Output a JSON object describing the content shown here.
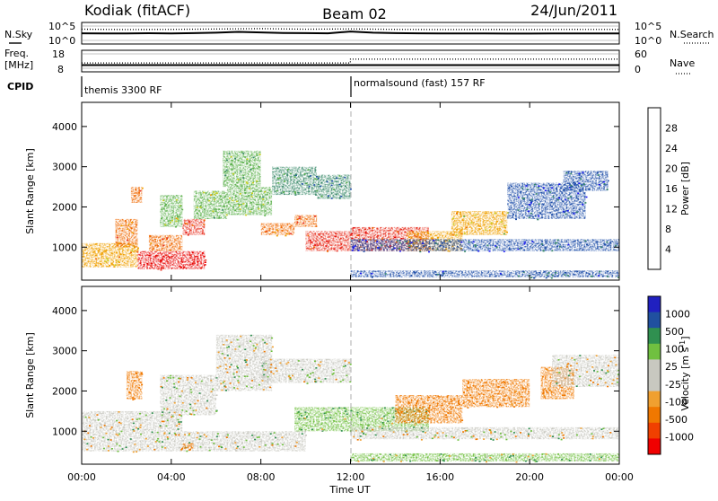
{
  "header": {
    "station": "Kodiak (fitACF)",
    "beam": "Beam 02",
    "date": "24/Jun/2011"
  },
  "noise_panel": {
    "left_label": "N.Sky",
    "left_ticks": [
      "10^5",
      "10^0"
    ],
    "right_label": "N.Search",
    "right_ticks": [
      "10^5",
      "10^0"
    ]
  },
  "freq_panel": {
    "left_label_line1": "Freq.",
    "left_label_line2": "[MHz]",
    "left_ticks": [
      "18",
      "8"
    ],
    "right_label": "Nave",
    "right_ticks": [
      "60",
      "0"
    ]
  },
  "cpid_panel": {
    "label": "CPID",
    "segments": [
      {
        "start_hour": 0,
        "text": "themis 3300 RF"
      },
      {
        "start_hour": 12,
        "text": "normalsound (fast) 157 RF"
      }
    ]
  },
  "colors": {
    "power_scale": [
      "#1818f0",
      "#1e4ea8",
      "#3a8a6a",
      "#5ab04a",
      "#c8d020",
      "#f0a000",
      "#f06800",
      "#e83020",
      "#e80000"
    ],
    "velocity_scale": [
      "#f00000",
      "#f04000",
      "#f07800",
      "#f0a030",
      "#c8c8c0",
      "#c8c8c0",
      "#70c040",
      "#309050",
      "#2050a0",
      "#2020c0"
    ],
    "ground_scatter": "#c8c8c0"
  },
  "chart_data": [
    {
      "type": "line",
      "title": "N.Sky / N.Search",
      "x_unit": "hours UT",
      "y_scale": "log",
      "ylim": [
        1,
        100000
      ],
      "series": [
        {
          "name": "N.Sky",
          "style": "solid",
          "x": [
            0,
            1,
            2,
            3,
            4,
            5,
            6,
            7,
            8,
            9,
            10,
            11,
            12,
            13,
            14,
            15,
            16,
            17,
            18,
            19,
            20,
            21,
            22,
            23,
            24
          ],
          "y": [
            300,
            250,
            280,
            320,
            260,
            350,
            500,
            900,
            600,
            400,
            350,
            300,
            1200,
            500,
            350,
            300,
            280,
            260,
            250,
            240,
            240,
            250,
            260,
            270,
            260
          ]
        },
        {
          "name": "N.Search",
          "style": "dotted",
          "x": [
            0,
            2,
            4,
            6,
            8,
            10,
            12,
            14,
            16,
            18,
            20,
            22,
            24
          ],
          "y": [
            8000,
            6000,
            7000,
            9000,
            12000,
            8000,
            10000,
            7000,
            6000,
            6500,
            6000,
            7000,
            6500
          ]
        }
      ]
    },
    {
      "type": "line",
      "title": "Freq. / Nave",
      "x_unit": "hours UT",
      "series": [
        {
          "name": "Freq. [MHz]",
          "style": "solid",
          "ylim": [
            8,
            18
          ],
          "x": [
            0,
            11.99,
            12,
            24
          ],
          "y": [
            10.2,
            10.2,
            10.2,
            10.2
          ]
        },
        {
          "name": "Nave",
          "style": "dotted",
          "ylim": [
            0,
            60
          ],
          "x": [
            0,
            11.99,
            12,
            24
          ],
          "y": [
            22,
            22,
            38,
            38
          ]
        }
      ]
    },
    {
      "type": "heatmap",
      "title": "Power",
      "xlabel": "Time UT",
      "ylabel": "Slant Range [km]",
      "colorbar_label": "Power [dB]",
      "colorbar_ticks": [
        4,
        8,
        12,
        16,
        20,
        24,
        28
      ],
      "colorbar_range": [
        0,
        32
      ],
      "xlim": [
        0,
        24
      ],
      "ylim": [
        180,
        4600
      ],
      "yticks": [
        1000,
        2000,
        3000,
        4000
      ],
      "regions": [
        {
          "t0": 0.0,
          "t1": 2.5,
          "r0": 500,
          "r1": 1100,
          "value": 20
        },
        {
          "t0": 1.5,
          "t1": 2.5,
          "r0": 1000,
          "r1": 1700,
          "value": 22
        },
        {
          "t0": 2.5,
          "t1": 5.5,
          "r0": 450,
          "r1": 900,
          "value": 30
        },
        {
          "t0": 3.0,
          "t1": 4.5,
          "r0": 900,
          "r1": 1300,
          "value": 24
        },
        {
          "t0": 2.2,
          "t1": 2.7,
          "r0": 2100,
          "r1": 2500,
          "value": 22
        },
        {
          "t0": 3.5,
          "t1": 4.5,
          "r0": 1500,
          "r1": 2300,
          "value": 14
        },
        {
          "t0": 4.5,
          "t1": 5.5,
          "r0": 1300,
          "r1": 1700,
          "value": 26
        },
        {
          "t0": 5.0,
          "t1": 6.5,
          "r0": 1700,
          "r1": 2400,
          "value": 14
        },
        {
          "t0": 6.3,
          "t1": 8.0,
          "r0": 2500,
          "r1": 3400,
          "value": 12
        },
        {
          "t0": 6.5,
          "t1": 8.5,
          "r0": 1800,
          "r1": 2500,
          "value": 14
        },
        {
          "t0": 8.0,
          "t1": 9.5,
          "r0": 1300,
          "r1": 1600,
          "value": 22
        },
        {
          "t0": 8.5,
          "t1": 10.5,
          "r0": 2300,
          "r1": 3000,
          "value": 10
        },
        {
          "t0": 9.5,
          "t1": 10.5,
          "r0": 1500,
          "r1": 1800,
          "value": 24
        },
        {
          "t0": 10.0,
          "t1": 12.0,
          "r0": 900,
          "r1": 1400,
          "value": 26
        },
        {
          "t0": 10.5,
          "t1": 12.0,
          "r0": 2200,
          "r1": 2800,
          "value": 8
        },
        {
          "t0": 12.0,
          "t1": 15.5,
          "r0": 900,
          "r1": 1500,
          "value": 26
        },
        {
          "t0": 14.5,
          "t1": 17.0,
          "r0": 900,
          "r1": 1400,
          "value": 20
        },
        {
          "t0": 16.5,
          "t1": 19.0,
          "r0": 1300,
          "r1": 1900,
          "value": 18
        },
        {
          "t0": 12.0,
          "t1": 24.0,
          "r0": 900,
          "r1": 1200,
          "value": 6
        },
        {
          "t0": 12.0,
          "t1": 24.0,
          "r0": 250,
          "r1": 420,
          "value": 6
        },
        {
          "t0": 19.0,
          "t1": 22.5,
          "r0": 1700,
          "r1": 2600,
          "value": 6
        },
        {
          "t0": 21.5,
          "t1": 23.5,
          "r0": 2400,
          "r1": 2900,
          "value": 6
        }
      ]
    },
    {
      "type": "heatmap",
      "title": "Velocity",
      "xlabel": "Time UT",
      "ylabel": "Slant Range [km]",
      "colorbar_label": "Velocity [m s^-1]",
      "colorbar_ticks": [
        1000,
        500,
        100,
        25,
        -25,
        -100,
        -500,
        -1000
      ],
      "colorbar_range": [
        -1000,
        1000
      ],
      "xlim": [
        0,
        24
      ],
      "ylim": [
        180,
        4600
      ],
      "yticks": [
        1000,
        2000,
        3000,
        4000
      ],
      "xticks": [
        "00:00",
        "04:00",
        "08:00",
        "12:00",
        "16:00",
        "20:00",
        "00:00"
      ],
      "regions": [
        {
          "t0": 0.0,
          "t1": 10.0,
          "r0": 500,
          "r1": 1000,
          "value": 0
        },
        {
          "t0": 0.0,
          "t1": 4.5,
          "r0": 1000,
          "r1": 1500,
          "value": 0
        },
        {
          "t0": 2.0,
          "t1": 2.7,
          "r0": 1800,
          "r1": 2500,
          "value": -300
        },
        {
          "t0": 3.5,
          "t1": 6.0,
          "r0": 1400,
          "r1": 2400,
          "value": 0
        },
        {
          "t0": 6.0,
          "t1": 8.5,
          "r0": 2000,
          "r1": 3400,
          "value": 0
        },
        {
          "t0": 8.0,
          "t1": 12.0,
          "r0": 2200,
          "r1": 2800,
          "value": 0
        },
        {
          "t0": 9.5,
          "t1": 15.5,
          "r0": 1000,
          "r1": 1600,
          "value": 100
        },
        {
          "t0": 14.0,
          "t1": 17.0,
          "r0": 1200,
          "r1": 1900,
          "value": -250
        },
        {
          "t0": 17.0,
          "t1": 20.0,
          "r0": 1600,
          "r1": 2300,
          "value": -200
        },
        {
          "t0": 20.5,
          "t1": 22.0,
          "r0": 1800,
          "r1": 2600,
          "value": -200
        },
        {
          "t0": 21.0,
          "t1": 24.0,
          "r0": 2100,
          "r1": 2900,
          "value": 0
        },
        {
          "t0": 12.0,
          "t1": 24.0,
          "r0": 800,
          "r1": 1100,
          "value": 0
        },
        {
          "t0": 12.0,
          "t1": 24.0,
          "r0": 250,
          "r1": 450,
          "value": 60
        },
        {
          "t0": 4.5,
          "t1": 5.0,
          "r0": 550,
          "r1": 700,
          "value": -200
        }
      ]
    }
  ],
  "axes": {
    "xlabel": "Time UT",
    "xticks": [
      "00:00",
      "04:00",
      "08:00",
      "12:00",
      "16:00",
      "20:00",
      "00:00"
    ],
    "ylabel": "Slant Range [km]",
    "yticks": [
      "1000",
      "2000",
      "3000",
      "4000"
    ],
    "power_colorbar_label": "Power [dB]",
    "power_colorbar_ticks": [
      "28",
      "24",
      "20",
      "16",
      "12",
      "8",
      "4"
    ],
    "velocity_colorbar_label": "Velocity [m s",
    "velocity_colorbar_sup": "-1",
    "velocity_colorbar_close": "]",
    "velocity_colorbar_ticks": [
      "1000",
      "500",
      "100",
      "25",
      "-25",
      "-100",
      "-500",
      "-1000"
    ]
  }
}
